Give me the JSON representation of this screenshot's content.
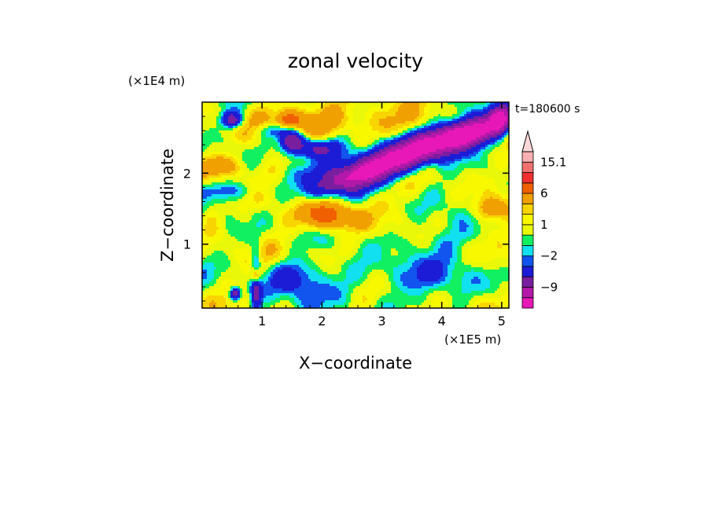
{
  "chart_data": {
    "type": "heatmap",
    "title": "zonal velocity",
    "xlabel": "X−coordinate",
    "ylabel": "Z−coordinate",
    "x_scale_label": "(×1E5 m)",
    "y_scale_label": "(×1E4 m)",
    "time_label": "t=180600 s",
    "xlim": [
      0,
      5.12
    ],
    "ylim": [
      0.1,
      3.0
    ],
    "x_ticks": [
      1,
      2,
      3,
      4,
      5
    ],
    "x_tick_labels": [
      "1",
      "2",
      "3",
      "4",
      "5"
    ],
    "y_ticks": [
      1,
      2
    ],
    "y_tick_labels": [
      "1",
      "2"
    ],
    "colorbar": {
      "levels": [
        -15,
        -12,
        -9,
        -6,
        -3,
        -2,
        -1,
        0,
        1,
        2,
        3,
        6,
        9,
        12,
        15.1
      ],
      "labeled_ticks": [
        {
          "value": 15.1,
          "label": "15.1"
        },
        {
          "value": 6,
          "label": "6"
        },
        {
          "value": 1,
          "label": "1"
        },
        {
          "value": -2,
          "label": "−2"
        },
        {
          "value": -9,
          "label": "−9"
        }
      ],
      "colors": [
        "#e817b8",
        "#b219a8",
        "#7a1ea0",
        "#1c1cd6",
        "#1155ee",
        "#10e0f0",
        "#10f060",
        "#e8f808",
        "#f8f800",
        "#f8d400",
        "#f0a000",
        "#f06000",
        "#f03030",
        "#f07070",
        "#f8b0b0"
      ],
      "extend_top_color": "#fbd8d8"
    },
    "field_features": {
      "background": 0.5,
      "blobs": [
        {
          "x": 3.6,
          "z": 2.25,
          "sx": 0.9,
          "sz": 0.18,
          "amp": -14,
          "tilt": 0.35
        },
        {
          "x": 2.6,
          "z": 2.0,
          "sx": 0.6,
          "sz": 0.12,
          "amp": -9,
          "tilt": 0.3
        },
        {
          "x": 4.5,
          "z": 2.55,
          "sx": 0.4,
          "sz": 0.12,
          "amp": -8,
          "tilt": 0.2
        },
        {
          "x": 1.5,
          "z": 2.45,
          "sx": 0.15,
          "sz": 0.12,
          "amp": -12,
          "tilt": 0
        },
        {
          "x": 1.95,
          "z": 2.35,
          "sx": 0.25,
          "sz": 0.1,
          "amp": -8,
          "tilt": 0
        },
        {
          "x": 0.5,
          "z": 2.75,
          "sx": 0.12,
          "sz": 0.08,
          "amp": -9,
          "tilt": 0
        },
        {
          "x": 1.2,
          "z": 2.6,
          "sx": 0.2,
          "sz": 0.08,
          "amp": -5,
          "tilt": 0
        },
        {
          "x": 0.9,
          "z": 0.45,
          "sx": 0.06,
          "sz": 0.3,
          "amp": -8,
          "tilt": 0
        },
        {
          "x": 0.55,
          "z": 0.3,
          "sx": 0.06,
          "sz": 0.06,
          "amp": -10,
          "tilt": 0
        },
        {
          "x": 4.95,
          "z": 2.75,
          "sx": 0.1,
          "sz": 0.12,
          "amp": -9,
          "tilt": 0
        },
        {
          "x": 3.4,
          "z": 2.4,
          "sx": 1.3,
          "sz": 0.12,
          "amp": -4,
          "tilt": 0.25
        },
        {
          "x": 2.1,
          "z": 1.4,
          "sx": 0.3,
          "sz": 0.15,
          "amp": 8,
          "tilt": 0
        },
        {
          "x": 2.0,
          "z": 2.7,
          "sx": 1.0,
          "sz": 0.18,
          "amp": 4,
          "tilt": 0
        },
        {
          "x": 3.3,
          "z": 2.05,
          "sx": 1.3,
          "sz": 0.2,
          "amp": 3.5,
          "tilt": 0.3
        },
        {
          "x": 0.3,
          "z": 2.1,
          "sx": 0.3,
          "sz": 0.12,
          "amp": 5,
          "tilt": 0
        },
        {
          "x": 1.45,
          "z": 2.75,
          "sx": 0.12,
          "sz": 0.08,
          "amp": 6,
          "tilt": 0
        },
        {
          "x": 4.8,
          "z": 1.5,
          "sx": 0.2,
          "sz": 0.12,
          "amp": 5,
          "tilt": 0
        },
        {
          "x": 0.9,
          "z": 0.55,
          "sx": 0.05,
          "sz": 0.08,
          "amp": 9,
          "tilt": 0
        },
        {
          "x": 0.15,
          "z": 1.4,
          "sx": 0.15,
          "sz": 0.2,
          "amp": 3,
          "tilt": 0
        },
        {
          "x": 3.0,
          "z": 0.6,
          "sx": 0.7,
          "sz": 0.2,
          "amp": -1.6,
          "tilt": 0
        },
        {
          "x": 4.0,
          "z": 0.5,
          "sx": 0.7,
          "sz": 0.2,
          "amp": -1.6,
          "tilt": 0
        },
        {
          "x": 1.8,
          "z": 0.35,
          "sx": 0.6,
          "sz": 0.2,
          "amp": -1.4,
          "tilt": 0
        },
        {
          "x": 3.8,
          "z": 1.05,
          "sx": 0.9,
          "sz": 0.15,
          "amp": -1.2,
          "tilt": 0
        },
        {
          "x": 0.5,
          "z": 1.2,
          "sx": 0.35,
          "sz": 0.18,
          "amp": -1.4,
          "tilt": 0
        },
        {
          "x": 2.0,
          "z": 0.9,
          "sx": 0.5,
          "sz": 0.12,
          "amp": 1.2,
          "tilt": 0
        },
        {
          "x": 1.5,
          "z": 0.55,
          "sx": 0.25,
          "sz": 0.15,
          "amp": -3.5,
          "tilt": 0
        },
        {
          "x": 0.3,
          "z": 1.75,
          "sx": 0.5,
          "sz": 0.08,
          "amp": -2.5,
          "tilt": 0
        }
      ]
    }
  }
}
